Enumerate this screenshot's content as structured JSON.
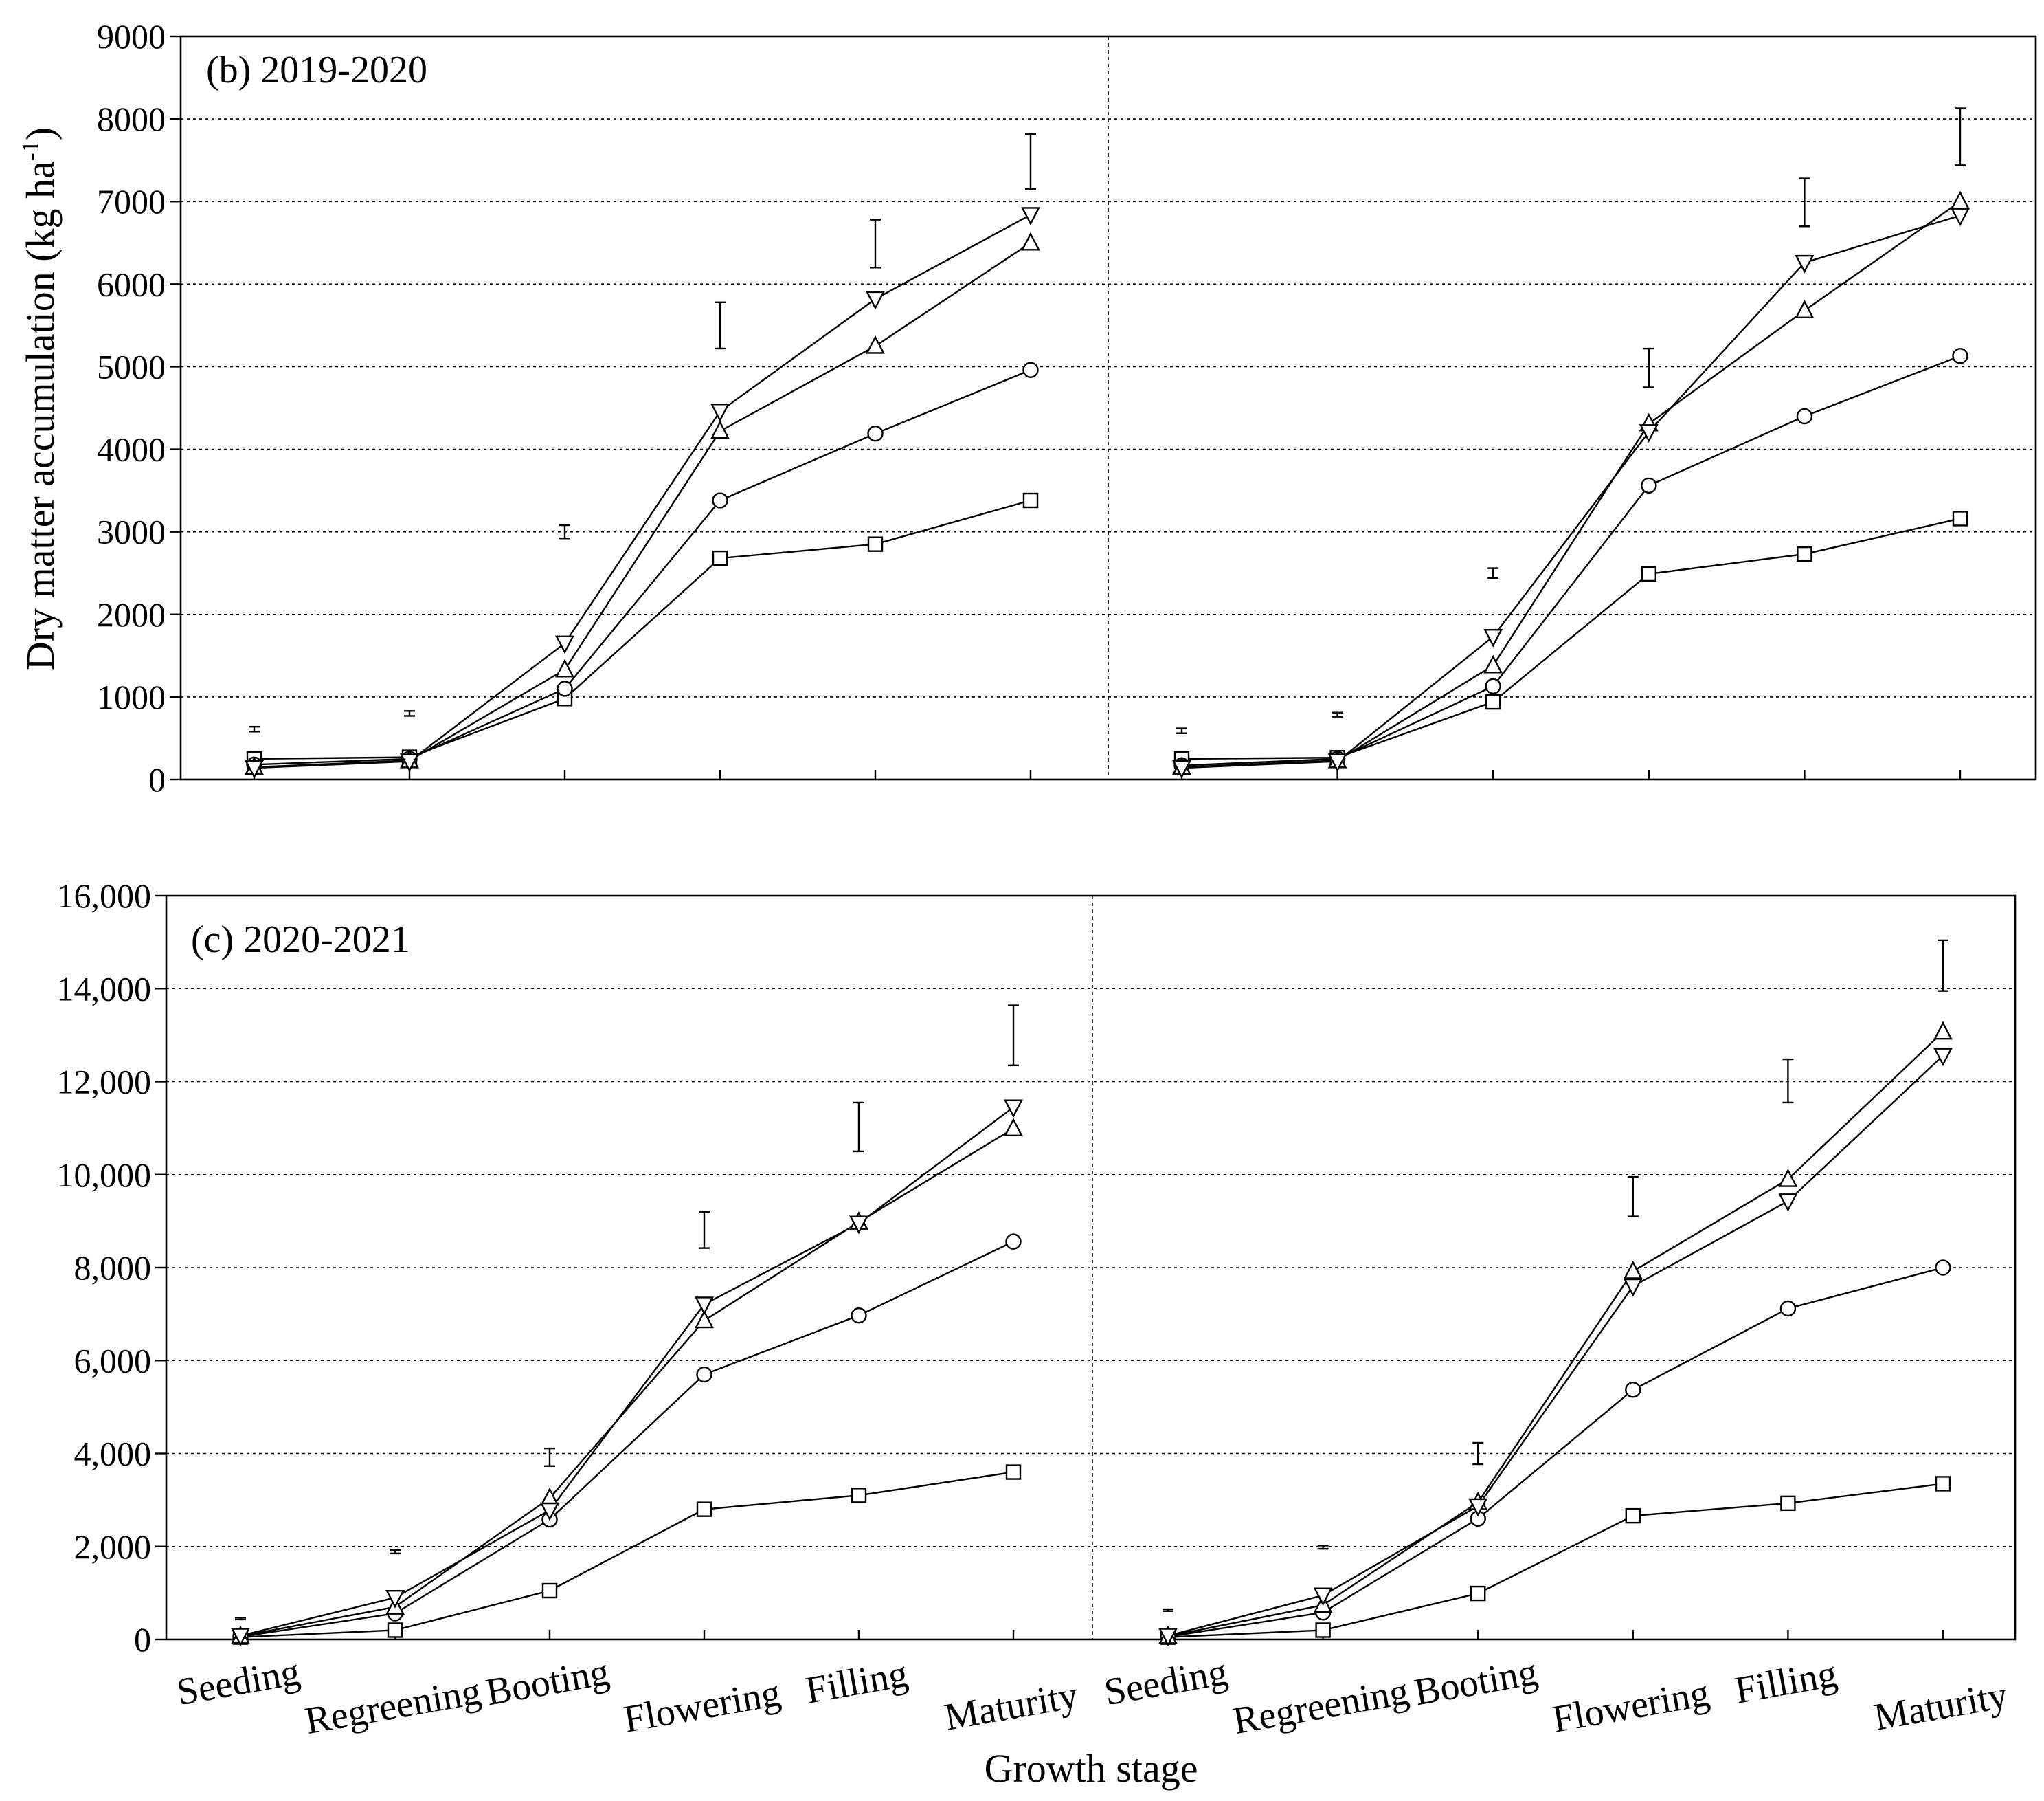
{
  "figure": {
    "ylabel_main": "Dry matter accumulation (kg ha",
    "ylabel_sup": "-1",
    "ylabel_close": ")",
    "xlabel": "Growth stage"
  },
  "chart_data": [
    {
      "type": "line",
      "title": "(b) 2019-2020",
      "categories": [
        "Seeding",
        "Regreening",
        "Booting",
        "Flowering",
        "Filling",
        "Maturity"
      ],
      "yticks": [
        "0",
        "1000",
        "2000",
        "3000",
        "4000",
        "5000",
        "6000",
        "7000",
        "8000",
        "9000"
      ],
      "ylim": [
        0,
        9000
      ],
      "grid": "horizontal dotted",
      "subplots": [
        {
          "series": [
            {
              "marker": "square",
              "values": [
                250,
                270,
                980,
                2680,
                2850,
                3380
              ]
            },
            {
              "marker": "circle",
              "values": [
                180,
                250,
                1100,
                3380,
                4190,
                4960
              ]
            },
            {
              "marker": "triangle-up",
              "values": [
                150,
                230,
                1330,
                4220,
                5250,
                6500
              ]
            },
            {
              "marker": "triangle-down",
              "values": [
                140,
                220,
                1650,
                4460,
                5820,
                6840
              ]
            }
          ],
          "error_bars": [
            {
              "low": 580,
              "high": 640
            },
            {
              "low": 770,
              "high": 830
            },
            {
              "low": 2920,
              "high": 3080
            },
            {
              "low": 5220,
              "high": 5780
            },
            {
              "low": 6200,
              "high": 6780
            },
            {
              "low": 7150,
              "high": 7820
            }
          ]
        },
        {
          "series": [
            {
              "marker": "square",
              "values": [
                250,
                265,
                940,
                2490,
                2730,
                3160
              ]
            },
            {
              "marker": "circle",
              "values": [
                170,
                250,
                1130,
                3560,
                4400,
                5130
              ]
            },
            {
              "marker": "triangle-up",
              "values": [
                150,
                230,
                1380,
                4310,
                5680,
                7000
              ]
            },
            {
              "marker": "triangle-down",
              "values": [
                140,
                220,
                1730,
                4210,
                6260,
                6830
              ]
            }
          ],
          "error_bars": [
            {
              "low": 560,
              "high": 620
            },
            {
              "low": 760,
              "high": 810
            },
            {
              "low": 2440,
              "high": 2560
            },
            {
              "low": 4750,
              "high": 5220
            },
            {
              "low": 6700,
              "high": 7280
            },
            {
              "low": 7440,
              "high": 8130
            }
          ]
        }
      ]
    },
    {
      "type": "line",
      "title": "(c) 2020-2021",
      "categories": [
        "Seeding",
        "Regreening",
        "Booting",
        "Flowering",
        "Filling",
        "Maturity"
      ],
      "yticks": [
        "0",
        "2,000",
        "4,000",
        "6,000",
        "8,000",
        "10,000",
        "12,000",
        "14,000",
        "16,000"
      ],
      "ylim": [
        0,
        16000
      ],
      "grid": "horizontal dotted",
      "subplots": [
        {
          "series": [
            {
              "marker": "square",
              "values": [
                50,
                200,
                1050,
                2800,
                3100,
                3600
              ]
            },
            {
              "marker": "circle",
              "values": [
                60,
                560,
                2580,
                5700,
                6970,
                8560
              ]
            },
            {
              "marker": "triangle-up",
              "values": [
                70,
                700,
                3040,
                6860,
                8980,
                10990
              ]
            },
            {
              "marker": "triangle-down",
              "values": [
                80,
                900,
                2780,
                7210,
                8950,
                11450
              ]
            }
          ],
          "error_bars": [
            {
              "low": 430,
              "high": 470
            },
            {
              "low": 1850,
              "high": 1920
            },
            {
              "low": 3730,
              "high": 4110
            },
            {
              "low": 8420,
              "high": 9200
            },
            {
              "low": 10500,
              "high": 11550
            },
            {
              "low": 12350,
              "high": 13640
            }
          ]
        },
        {
          "series": [
            {
              "marker": "square",
              "values": [
                50,
                200,
                990,
                2660,
                2930,
                3350
              ]
            },
            {
              "marker": "circle",
              "values": [
                60,
                580,
                2600,
                5370,
                7120,
                8000
              ]
            },
            {
              "marker": "triangle-up",
              "values": [
                70,
                740,
                2950,
                7920,
                9900,
                13070
              ]
            },
            {
              "marker": "triangle-down",
              "values": [
                80,
                950,
                2870,
                7600,
                9430,
                12560
              ]
            }
          ],
          "error_bars": [
            {
              "low": 610,
              "high": 650
            },
            {
              "low": 1950,
              "high": 2020
            },
            {
              "low": 3770,
              "high": 4230
            },
            {
              "low": 9100,
              "high": 9950
            },
            {
              "low": 11550,
              "high": 12480
            },
            {
              "low": 13950,
              "high": 15040
            }
          ]
        }
      ]
    }
  ]
}
